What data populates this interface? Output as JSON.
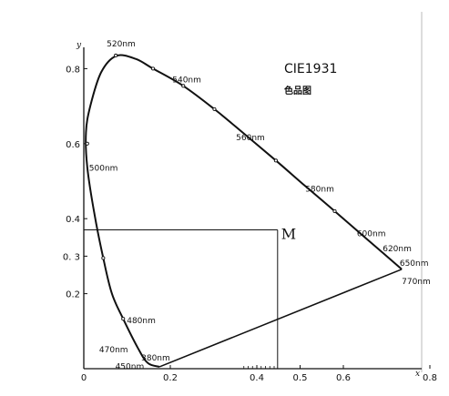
{
  "chart_data": {
    "type": "line",
    "title": "CIE1931",
    "subtitle": "色品图",
    "xlabel": "x",
    "ylabel": "y",
    "xlim": [
      0,
      0.85
    ],
    "ylim": [
      0,
      0.85
    ],
    "x_ticks": [
      {
        "value": 0,
        "label": "0"
      },
      {
        "value": 0.2,
        "label": "0.2"
      },
      {
        "value": 0.4,
        "label": "0.4"
      },
      {
        "value": 0.5,
        "label": "0.5"
      },
      {
        "value": 0.6,
        "label": "0.6"
      },
      {
        "value": 0.8,
        "label": "0.8"
      }
    ],
    "y_ticks": [
      {
        "value": 0.2,
        "label": "0.2"
      },
      {
        "value": 0.3,
        "label": "0. 3"
      },
      {
        "value": 0.4,
        "label": "0.4"
      },
      {
        "value": 0.6,
        "label": "0.6"
      },
      {
        "value": 0.8,
        "label": "0.8"
      }
    ],
    "spectral_locus": [
      {
        "x": 0.175,
        "y": 0.005
      },
      {
        "x": 0.148,
        "y": 0.015
      },
      {
        "x": 0.125,
        "y": 0.055
      },
      {
        "x": 0.091,
        "y": 0.133
      },
      {
        "x": 0.065,
        "y": 0.2
      },
      {
        "x": 0.045,
        "y": 0.295
      },
      {
        "x": 0.025,
        "y": 0.41
      },
      {
        "x": 0.008,
        "y": 0.538
      },
      {
        "x": 0.005,
        "y": 0.63
      },
      {
        "x": 0.015,
        "y": 0.7
      },
      {
        "x": 0.04,
        "y": 0.79
      },
      {
        "x": 0.075,
        "y": 0.834
      },
      {
        "x": 0.12,
        "y": 0.826
      },
      {
        "x": 0.16,
        "y": 0.8
      },
      {
        "x": 0.23,
        "y": 0.754
      },
      {
        "x": 0.302,
        "y": 0.692
      },
      {
        "x": 0.373,
        "y": 0.624
      },
      {
        "x": 0.444,
        "y": 0.555
      },
      {
        "x": 0.512,
        "y": 0.487
      },
      {
        "x": 0.58,
        "y": 0.42
      },
      {
        "x": 0.64,
        "y": 0.36
      },
      {
        "x": 0.69,
        "y": 0.31
      },
      {
        "x": 0.735,
        "y": 0.265
      }
    ],
    "purple_line": [
      {
        "x": 0.735,
        "y": 0.265
      },
      {
        "x": 0.175,
        "y": 0.005
      }
    ],
    "wavelength_labels": [
      {
        "label": "520nm",
        "x": 0.074,
        "y": 0.835
      },
      {
        "label": "540nm",
        "x": 0.23,
        "y": 0.754
      },
      {
        "label": "560nm",
        "x": 0.373,
        "y": 0.624
      },
      {
        "label": "580nm",
        "x": 0.512,
        "y": 0.487
      },
      {
        "label": "600nm",
        "x": 0.627,
        "y": 0.373
      },
      {
        "label": "620nm",
        "x": 0.691,
        "y": 0.308
      },
      {
        "label": "650nm",
        "x": 0.726,
        "y": 0.274
      },
      {
        "label": "770nm",
        "x": 0.735,
        "y": 0.26
      },
      {
        "label": "500nm",
        "x": 0.008,
        "y": 0.538
      },
      {
        "label": "480nm",
        "x": 0.091,
        "y": 0.133
      },
      {
        "label": "470nm",
        "x": 0.124,
        "y": 0.058
      },
      {
        "label": "450nm",
        "x": 0.157,
        "y": 0.018
      },
      {
        "label": "380nm",
        "x": 0.175,
        "y": 0.005
      }
    ],
    "point_M": {
      "label": "M",
      "x": 0.448,
      "y": 0.37
    }
  }
}
